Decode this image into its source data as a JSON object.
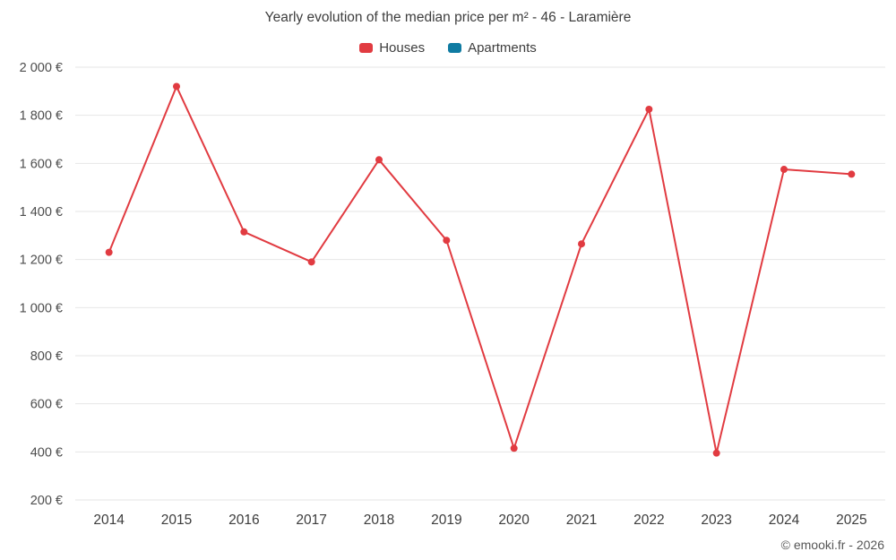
{
  "title": "Yearly evolution of the median price per m² - 46 - Laramière",
  "legend": {
    "items": [
      {
        "label": "Houses",
        "color": "#e13b41"
      },
      {
        "label": "Apartments",
        "color": "#0f7ba2"
      }
    ]
  },
  "footer": {
    "credit": "© emooki.fr - 2026"
  },
  "chart_data": {
    "type": "line",
    "title": "Yearly evolution of the median price per m² - 46 - Laramière",
    "categories": [
      "2014",
      "2015",
      "2016",
      "2017",
      "2018",
      "2019",
      "2020",
      "2021",
      "2022",
      "2023",
      "2024",
      "2025"
    ],
    "series": [
      {
        "name": "Houses",
        "color": "#e13b41",
        "values": [
          1230,
          1920,
          1315,
          1190,
          1615,
          1280,
          415,
          1265,
          1825,
          395,
          1575,
          1555
        ]
      },
      {
        "name": "Apartments",
        "color": "#0f7ba2",
        "values": []
      }
    ],
    "xlabel": "",
    "ylabel": "",
    "ylim": [
      200,
      2000
    ],
    "ytick_step": 200,
    "ytick_suffix": " €",
    "grid": true,
    "legend_position": "top",
    "marker_radius": 4
  }
}
